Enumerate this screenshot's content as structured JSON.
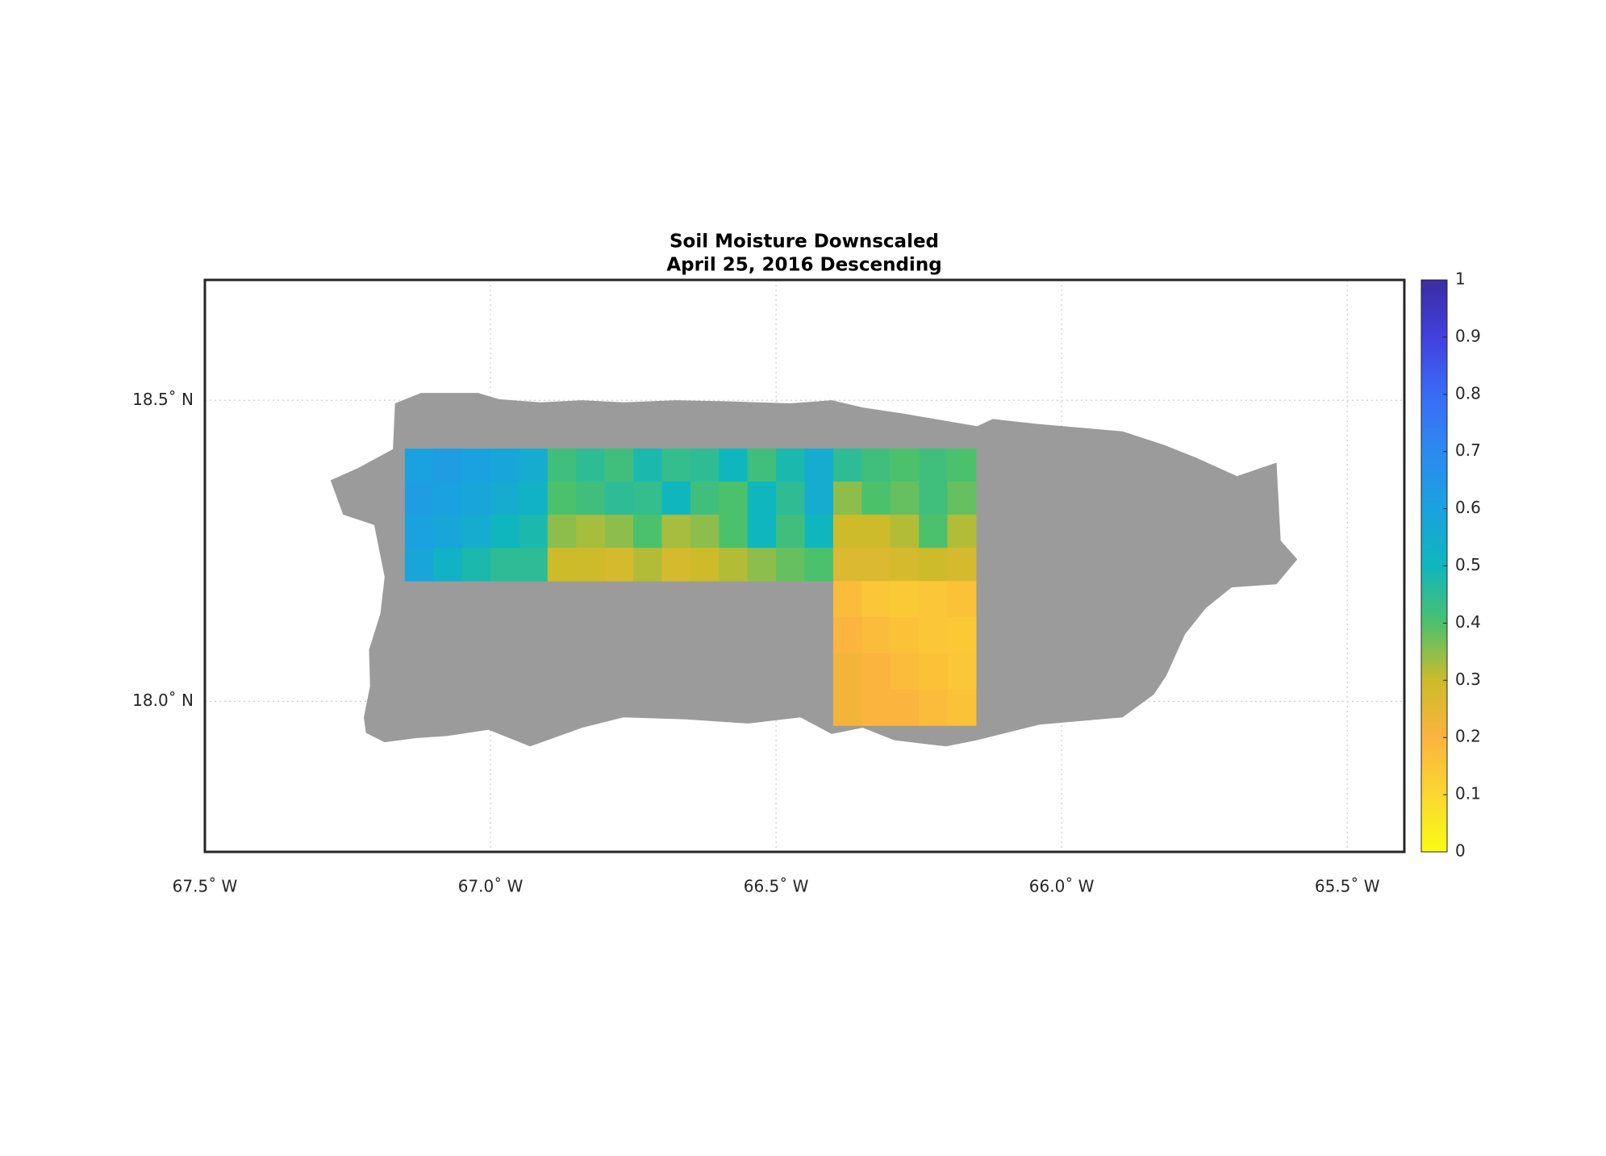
{
  "chart_data": {
    "type": "heatmap",
    "title": "Soil Moisture Downscaled",
    "subtitle": "April 25, 2016 Descending",
    "xlim": [
      -67.5,
      -65.4
    ],
    "ylim": [
      17.75,
      18.7
    ],
    "xticks": [
      {
        "value": -67.5,
        "label": "67.5˚ W"
      },
      {
        "value": -67.0,
        "label": "67.0˚ W"
      },
      {
        "value": -66.5,
        "label": "66.5˚ W"
      },
      {
        "value": -66.0,
        "label": "66.0˚ W"
      },
      {
        "value": -65.5,
        "label": "65.5˚ W"
      }
    ],
    "yticks": [
      {
        "value": 18.0,
        "label": "18.0˚ N"
      },
      {
        "value": 18.5,
        "label": "18.5˚ N"
      }
    ],
    "grid": true,
    "land_color": "#9b9b9b",
    "x_edges": [
      -67.15,
      -67.1,
      -67.05,
      -67.0,
      -66.95,
      -66.9,
      -66.85,
      -66.8,
      -66.75,
      -66.7,
      -66.65,
      -66.6,
      -66.55,
      -66.5,
      -66.45,
      -66.4,
      -66.35,
      -66.3,
      -66.25,
      -66.2,
      -66.15
    ],
    "y_edges": [
      18.42,
      18.365,
      18.31,
      18.255,
      18.2,
      18.14,
      18.08,
      18.02,
      17.96
    ],
    "values": [
      [
        0.6,
        0.62,
        0.6,
        0.58,
        0.55,
        0.42,
        0.45,
        0.42,
        0.48,
        0.44,
        0.45,
        0.5,
        0.42,
        0.48,
        0.55,
        0.45,
        0.42,
        0.4,
        0.42,
        0.4
      ],
      [
        0.62,
        0.6,
        0.58,
        0.55,
        0.52,
        0.4,
        0.42,
        0.45,
        0.44,
        0.5,
        0.42,
        0.4,
        0.5,
        0.45,
        0.55,
        0.35,
        0.4,
        0.38,
        0.42,
        0.38
      ],
      [
        0.6,
        0.58,
        0.55,
        0.5,
        0.48,
        0.35,
        0.33,
        0.35,
        0.4,
        0.33,
        0.35,
        0.4,
        0.5,
        0.42,
        0.5,
        0.3,
        0.3,
        0.32,
        0.4,
        0.32
      ],
      [
        0.58,
        0.52,
        0.48,
        0.45,
        0.45,
        0.3,
        0.3,
        0.28,
        0.32,
        0.28,
        0.3,
        0.32,
        0.35,
        0.38,
        0.4,
        0.27,
        0.27,
        0.28,
        0.3,
        0.28
      ],
      [
        null,
        null,
        null,
        null,
        null,
        null,
        null,
        null,
        null,
        null,
        null,
        null,
        null,
        null,
        null,
        0.18,
        0.15,
        0.14,
        0.15,
        0.16
      ],
      [
        null,
        null,
        null,
        null,
        null,
        null,
        null,
        null,
        null,
        null,
        null,
        null,
        null,
        null,
        null,
        0.2,
        0.18,
        0.16,
        0.15,
        0.14
      ],
      [
        null,
        null,
        null,
        null,
        null,
        null,
        null,
        null,
        null,
        null,
        null,
        null,
        null,
        null,
        null,
        0.22,
        0.2,
        0.18,
        0.16,
        0.15
      ],
      [
        null,
        null,
        null,
        null,
        null,
        null,
        null,
        null,
        null,
        null,
        null,
        null,
        null,
        null,
        null,
        0.22,
        0.2,
        0.2,
        0.18,
        0.16
      ]
    ],
    "clim": [
      0,
      1
    ],
    "colormap": [
      "#f9fb14",
      "#fbd730",
      "#fbb43e",
      "#cdbb2a",
      "#4cc16c",
      "#0fb6be",
      "#1aa2e0",
      "#2d89f0",
      "#396cf6",
      "#4240dd",
      "#3b2ca3"
    ],
    "colorbar_ticks": [
      0,
      0.1,
      0.2,
      0.3,
      0.4,
      0.5,
      0.6,
      0.7,
      0.8,
      0.9,
      1
    ]
  }
}
